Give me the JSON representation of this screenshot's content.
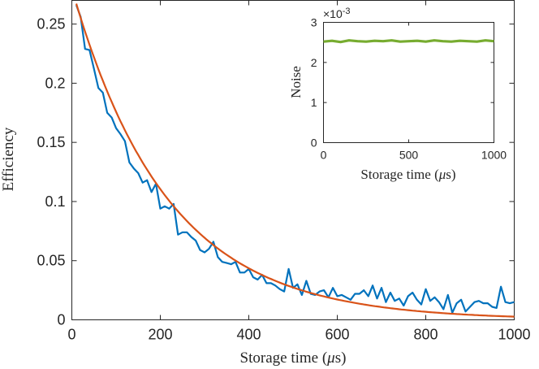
{
  "chart_data": [
    {
      "type": "line",
      "title": "",
      "xlabel": "Storage time (μs)",
      "xlabel_parts": [
        "Storage time (",
        "μ",
        "s)"
      ],
      "ylabel": "Efficiency",
      "xlim": [
        0,
        1000
      ],
      "ylim": [
        0,
        0.27
      ],
      "xticks": [
        0,
        200,
        400,
        600,
        800,
        1000
      ],
      "xtick_labels": [
        "0",
        "200",
        "400",
        "600",
        "800",
        "1000"
      ],
      "yticks": [
        0,
        0.05,
        0.1,
        0.15,
        0.2,
        0.25
      ],
      "ytick_labels": [
        "0",
        "0.05",
        "0.1",
        "0.15",
        "0.2",
        "0.25"
      ],
      "series": [
        {
          "name": "measured",
          "color": "#0072BD",
          "x": [
            10,
            20,
            30,
            40,
            50,
            60,
            70,
            80,
            90,
            100,
            110,
            120,
            130,
            140,
            150,
            160,
            170,
            180,
            190,
            200,
            210,
            220,
            230,
            240,
            250,
            260,
            270,
            280,
            290,
            300,
            310,
            320,
            330,
            340,
            350,
            360,
            370,
            380,
            390,
            400,
            410,
            420,
            430,
            440,
            450,
            460,
            470,
            480,
            490,
            500,
            510,
            520,
            530,
            540,
            550,
            560,
            570,
            580,
            590,
            600,
            610,
            620,
            630,
            640,
            650,
            660,
            670,
            680,
            690,
            700,
            710,
            720,
            730,
            740,
            750,
            760,
            770,
            780,
            790,
            800,
            810,
            820,
            830,
            840,
            850,
            860,
            870,
            880,
            890,
            900,
            910,
            920,
            930,
            940,
            950,
            960,
            970,
            980,
            990,
            1000
          ],
          "y": [
            0.266,
            0.256,
            0.229,
            0.228,
            0.212,
            0.196,
            0.192,
            0.175,
            0.171,
            0.162,
            0.157,
            0.151,
            0.133,
            0.128,
            0.124,
            0.116,
            0.118,
            0.108,
            0.115,
            0.094,
            0.096,
            0.094,
            0.098,
            0.072,
            0.074,
            0.074,
            0.07,
            0.067,
            0.059,
            0.057,
            0.06,
            0.066,
            0.053,
            0.049,
            0.048,
            0.047,
            0.049,
            0.04,
            0.04,
            0.043,
            0.036,
            0.034,
            0.038,
            0.031,
            0.031,
            0.029,
            0.026,
            0.024,
            0.043,
            0.027,
            0.03,
            0.021,
            0.033,
            0.022,
            0.021,
            0.024,
            0.025,
            0.019,
            0.027,
            0.02,
            0.021,
            0.019,
            0.017,
            0.022,
            0.022,
            0.025,
            0.02,
            0.029,
            0.018,
            0.027,
            0.015,
            0.023,
            0.016,
            0.018,
            0.012,
            0.02,
            0.023,
            0.017,
            0.013,
            0.026,
            0.016,
            0.019,
            0.015,
            0.009,
            0.021,
            0.006,
            0.014,
            0.017,
            0.007,
            0.011,
            0.015,
            0.016,
            0.014,
            0.014,
            0.011,
            0.01,
            0.028,
            0.015,
            0.014,
            0.015
          ]
        },
        {
          "name": "exponential fit",
          "color": "#D95319",
          "model": "0.28*exp(-x/215)"
        }
      ]
    },
    {
      "type": "line",
      "title": "",
      "xlabel": "Storage time (μs)",
      "xlabel_parts": [
        "Storage time (",
        "μ",
        "s)"
      ],
      "ylabel": "Noise",
      "xlim": [
        0,
        1000
      ],
      "ylim": [
        0,
        3
      ],
      "xticks": [
        0,
        500,
        1000
      ],
      "xtick_labels": [
        "0",
        "500",
        "1000"
      ],
      "yticks": [
        0,
        1,
        2,
        3
      ],
      "ytick_labels": [
        "0",
        "1",
        "2",
        "3"
      ],
      "y_multiplier": "×10",
      "y_exponent": "-3",
      "series": [
        {
          "name": "noise",
          "color": "#77AC30",
          "x": [
            0,
            50,
            100,
            150,
            200,
            250,
            300,
            350,
            400,
            450,
            500,
            550,
            600,
            650,
            700,
            750,
            800,
            850,
            900,
            950,
            1000
          ],
          "y": [
            2.52,
            2.54,
            2.51,
            2.55,
            2.53,
            2.52,
            2.54,
            2.53,
            2.55,
            2.52,
            2.53,
            2.54,
            2.52,
            2.55,
            2.53,
            2.52,
            2.54,
            2.53,
            2.52,
            2.55,
            2.53
          ]
        }
      ]
    }
  ]
}
